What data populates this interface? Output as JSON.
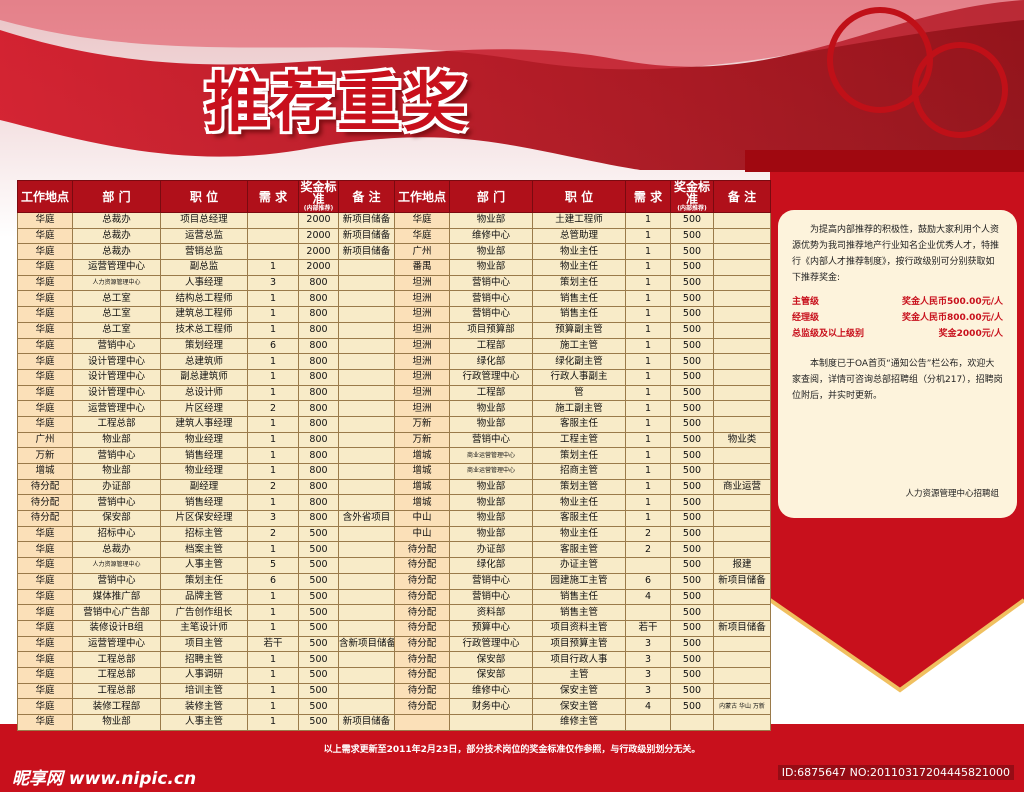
{
  "header": {
    "title": "推荐重奖"
  },
  "table": {
    "columns": [
      "工作地点",
      "部 门",
      "职 位",
      "需 求",
      {
        "label": "奖金标准",
        "sublabel": "(内部推荐)"
      },
      "备 注",
      "工作地点",
      "部 门",
      "职 位",
      "需 求",
      {
        "label": "奖金标准",
        "sublabel": "(内部推荐)"
      },
      "备 注"
    ],
    "rows": [
      [
        "华庭",
        "总裁办",
        "项目总经理",
        null,
        2000,
        "新项目储备",
        "华庭",
        "物业部",
        "土建工程师",
        1,
        500,
        null
      ],
      [
        "华庭",
        "总裁办",
        "运营总监",
        null,
        2000,
        "新项目储备",
        "华庭",
        "维修中心",
        "总管助理",
        1,
        500,
        null
      ],
      [
        "华庭",
        "总裁办",
        "营销总监",
        null,
        2000,
        "新项目储备",
        "广州",
        "物业部",
        "物业主任",
        1,
        500,
        null
      ],
      [
        "华庭",
        "运营管理中心",
        "副总监",
        1,
        2000,
        null,
        "番禺",
        "物业部",
        "物业主任",
        1,
        500,
        null
      ],
      [
        "华庭",
        "人力资源管理中心",
        "人事经理",
        3,
        800,
        null,
        "坦洲",
        "营销中心",
        "策划主任",
        1,
        500,
        null
      ],
      [
        "华庭",
        "总工室",
        "结构总工程师",
        1,
        800,
        null,
        "坦洲",
        "营销中心",
        "销售主任",
        1,
        500,
        null
      ],
      [
        "华庭",
        "总工室",
        "建筑总工程师",
        1,
        800,
        null,
        "坦洲",
        "营销中心",
        "销售主任",
        1,
        500,
        null
      ],
      [
        "华庭",
        "总工室",
        "技术总工程师",
        1,
        800,
        null,
        "坦洲",
        "项目预算部",
        "预算副主管",
        1,
        500,
        null
      ],
      [
        "华庭",
        "营销中心",
        "策划经理",
        6,
        800,
        null,
        "坦洲",
        "工程部",
        "施工主管",
        1,
        500,
        null
      ],
      [
        "华庭",
        "设计管理中心",
        "总建筑师",
        1,
        800,
        null,
        "坦洲",
        "绿化部",
        "绿化副主管",
        1,
        500,
        null
      ],
      [
        "华庭",
        "设计管理中心",
        "副总建筑师",
        1,
        800,
        null,
        "坦洲",
        "行政管理中心",
        "行政人事副主",
        1,
        500,
        null
      ],
      [
        "华庭",
        "设计管理中心",
        "总设计师",
        1,
        800,
        null,
        "坦洲",
        "工程部",
        "管",
        1,
        500,
        null
      ],
      [
        "华庭",
        "运营管理中心",
        "片区经理",
        2,
        800,
        null,
        "坦洲",
        "物业部",
        "施工副主管",
        1,
        500,
        null
      ],
      [
        "华庭",
        "工程总部",
        "建筑人事经理",
        1,
        800,
        null,
        "万新",
        "物业部",
        "客服主任",
        1,
        500,
        null
      ],
      [
        "广州",
        "物业部",
        "物业经理",
        1,
        800,
        null,
        "万新",
        "营销中心",
        "工程主管",
        1,
        500,
        "物业类"
      ],
      [
        "万新",
        "营销中心",
        "销售经理",
        1,
        800,
        null,
        "增城",
        "商业运营管理中心",
        "策划主任",
        1,
        500,
        null
      ],
      [
        "增城",
        "物业部",
        "物业经理",
        1,
        800,
        null,
        "增城",
        "商业运营管理中心",
        "招商主管",
        1,
        500,
        null
      ],
      [
        "待分配",
        "办证部",
        "副经理",
        2,
        800,
        null,
        "增城",
        "物业部",
        "策划主管",
        1,
        500,
        "商业运营"
      ],
      [
        "待分配",
        "营销中心",
        "销售经理",
        1,
        800,
        null,
        "增城",
        "物业部",
        "物业主任",
        1,
        500,
        null
      ],
      [
        "待分配",
        "保安部",
        "片区保安经理",
        3,
        800,
        "含外省项目",
        "中山",
        "物业部",
        "客服主任",
        1,
        500,
        null
      ],
      [
        "华庭",
        "招标中心",
        "招标主管",
        2,
        500,
        null,
        "中山",
        "物业部",
        "物业主任",
        2,
        500,
        null
      ],
      [
        "华庭",
        "总裁办",
        "档案主管",
        1,
        500,
        null,
        "待分配",
        "办证部",
        "客服主管",
        2,
        500,
        null
      ],
      [
        "华庭",
        "人力资源管理中心",
        "人事主管",
        5,
        500,
        null,
        "待分配",
        "绿化部",
        "办证主管",
        null,
        500,
        "报建"
      ],
      [
        "华庭",
        "营销中心",
        "策划主任",
        6,
        500,
        null,
        "待分配",
        "营销中心",
        "园建施工主管",
        6,
        500,
        "新项目储备"
      ],
      [
        "华庭",
        "媒体推广部",
        "品牌主管",
        1,
        500,
        null,
        "待分配",
        "营销中心",
        "销售主任",
        4,
        500,
        null
      ],
      [
        "华庭",
        "营销中心广告部",
        "广告创作组长",
        1,
        500,
        null,
        "待分配",
        "资料部",
        "销售主管",
        null,
        500,
        null
      ],
      [
        "华庭",
        "装修设计B组",
        "主笔设计师",
        1,
        500,
        null,
        "待分配",
        "预算中心",
        "项目资料主管",
        "若干",
        500,
        "新项目储备"
      ],
      [
        "华庭",
        "运营管理中心",
        "项目主管",
        "若干",
        500,
        "含新项目储备",
        "待分配",
        "行政管理中心",
        "项目预算主管",
        3,
        500,
        null
      ],
      [
        "华庭",
        "工程总部",
        "招聘主管",
        1,
        500,
        null,
        "待分配",
        "保安部",
        "项目行政人事",
        3,
        500,
        null
      ],
      [
        "华庭",
        "工程总部",
        "人事调研",
        1,
        500,
        null,
        "待分配",
        "保安部",
        "主管",
        3,
        500,
        null
      ],
      [
        "华庭",
        "工程总部",
        "培训主管",
        1,
        500,
        null,
        "待分配",
        "维修中心",
        "保安主管",
        3,
        500,
        null
      ],
      [
        "华庭",
        "装修工程部",
        "装修主管",
        1,
        500,
        null,
        "待分配",
        "财务中心",
        "保安主管",
        4,
        500,
        "内蒙古 华山 万新"
      ],
      [
        "华庭",
        "物业部",
        "人事主管",
        1,
        500,
        "新项目储备",
        null,
        null,
        "维修主管",
        null,
        null,
        null
      ]
    ]
  },
  "panel": {
    "intro": "为提高内部推荐的积极性，鼓励大家利用个人资源优势为我司推荐地产行业知名企业优秀人才，特推行《内部人才推荐制度》，按行政级别可分别获取如下推荐奖金:",
    "levels": [
      {
        "level": "主管级",
        "bonus": "奖金人民币500.00元/人"
      },
      {
        "level": "经理级",
        "bonus": "奖金人民币800.00元/人"
      },
      {
        "level": "总监级及以上级别",
        "bonus": "奖金2000元/人"
      }
    ],
    "notice": "本制度已于OA首页“通知公告”栏公布，欢迎大家查阅，详情可咨询总部招聘组（分机217），招聘岗位附后，并实时更新。",
    "signature": "人力资源管理中心招聘组"
  },
  "footer": {
    "note": "以上需求更新至2011年2月23日，部分技术岗位的奖金标准仅作参照，与行政级别划分无关。",
    "watermark": "昵享网 www.nipic.cn",
    "id": "ID:6875647 NO:20110317204445821000"
  }
}
